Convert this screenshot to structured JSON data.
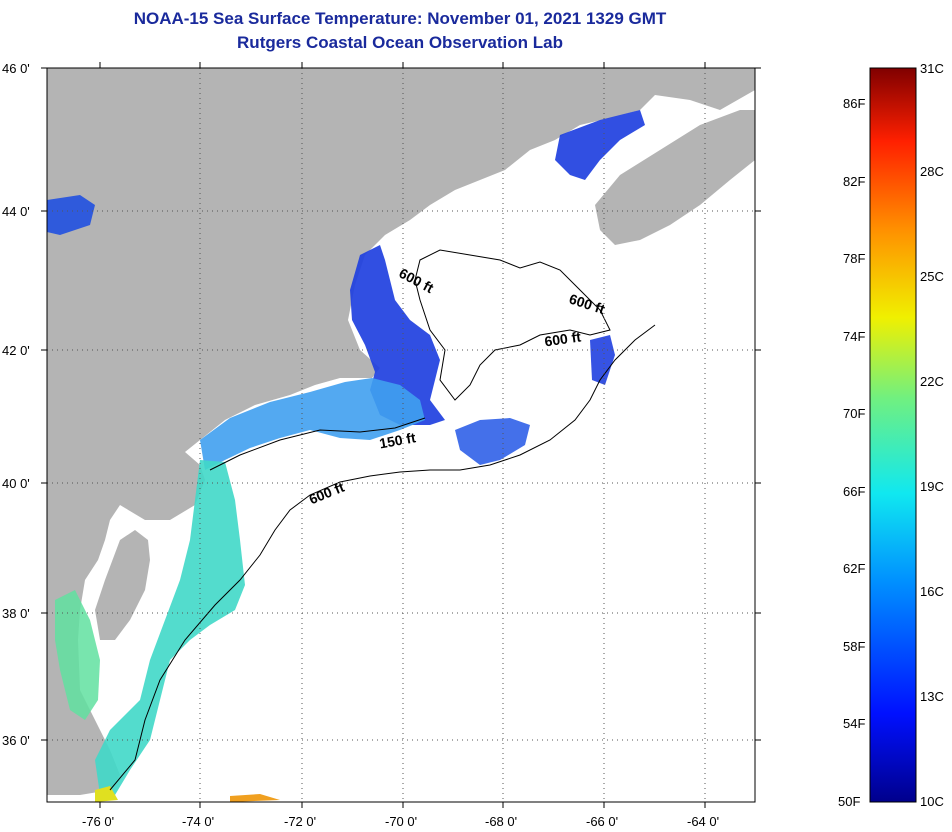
{
  "header": {
    "title_line1": "NOAA-15 Sea Surface Temperature:  November 01, 2021 1329 GMT",
    "title_line2": "Rutgers Coastal Ocean Observation Lab"
  },
  "map": {
    "lat_labels": [
      "46 0'",
      "44 0'",
      "42 0'",
      "40 0'",
      "38 0'",
      "36 0'"
    ],
    "lon_labels": [
      "-76 0'",
      "-74 0'",
      "-72 0'",
      "-70 0'",
      "-68 0'",
      "-66 0'",
      "-64 0'"
    ],
    "contour_labels": [
      "600 ft",
      "600 ft",
      "600 ft",
      "150 ft",
      "600 ft"
    ],
    "colors": {
      "land": "#b4b4b4",
      "ocean_nodata": "#ffffff",
      "cold": "#2040e0",
      "cool": "#40a0f0",
      "mild": "#40d8c8",
      "warm": "#f0a020"
    }
  },
  "colorbar": {
    "fahrenheit": [
      "86F",
      "82F",
      "78F",
      "74F",
      "70F",
      "66F",
      "62F",
      "58F",
      "54F",
      "50F"
    ],
    "celsius": [
      "31C",
      "28C",
      "25C",
      "22C",
      "19C",
      "16C",
      "13C",
      "10C"
    ]
  }
}
